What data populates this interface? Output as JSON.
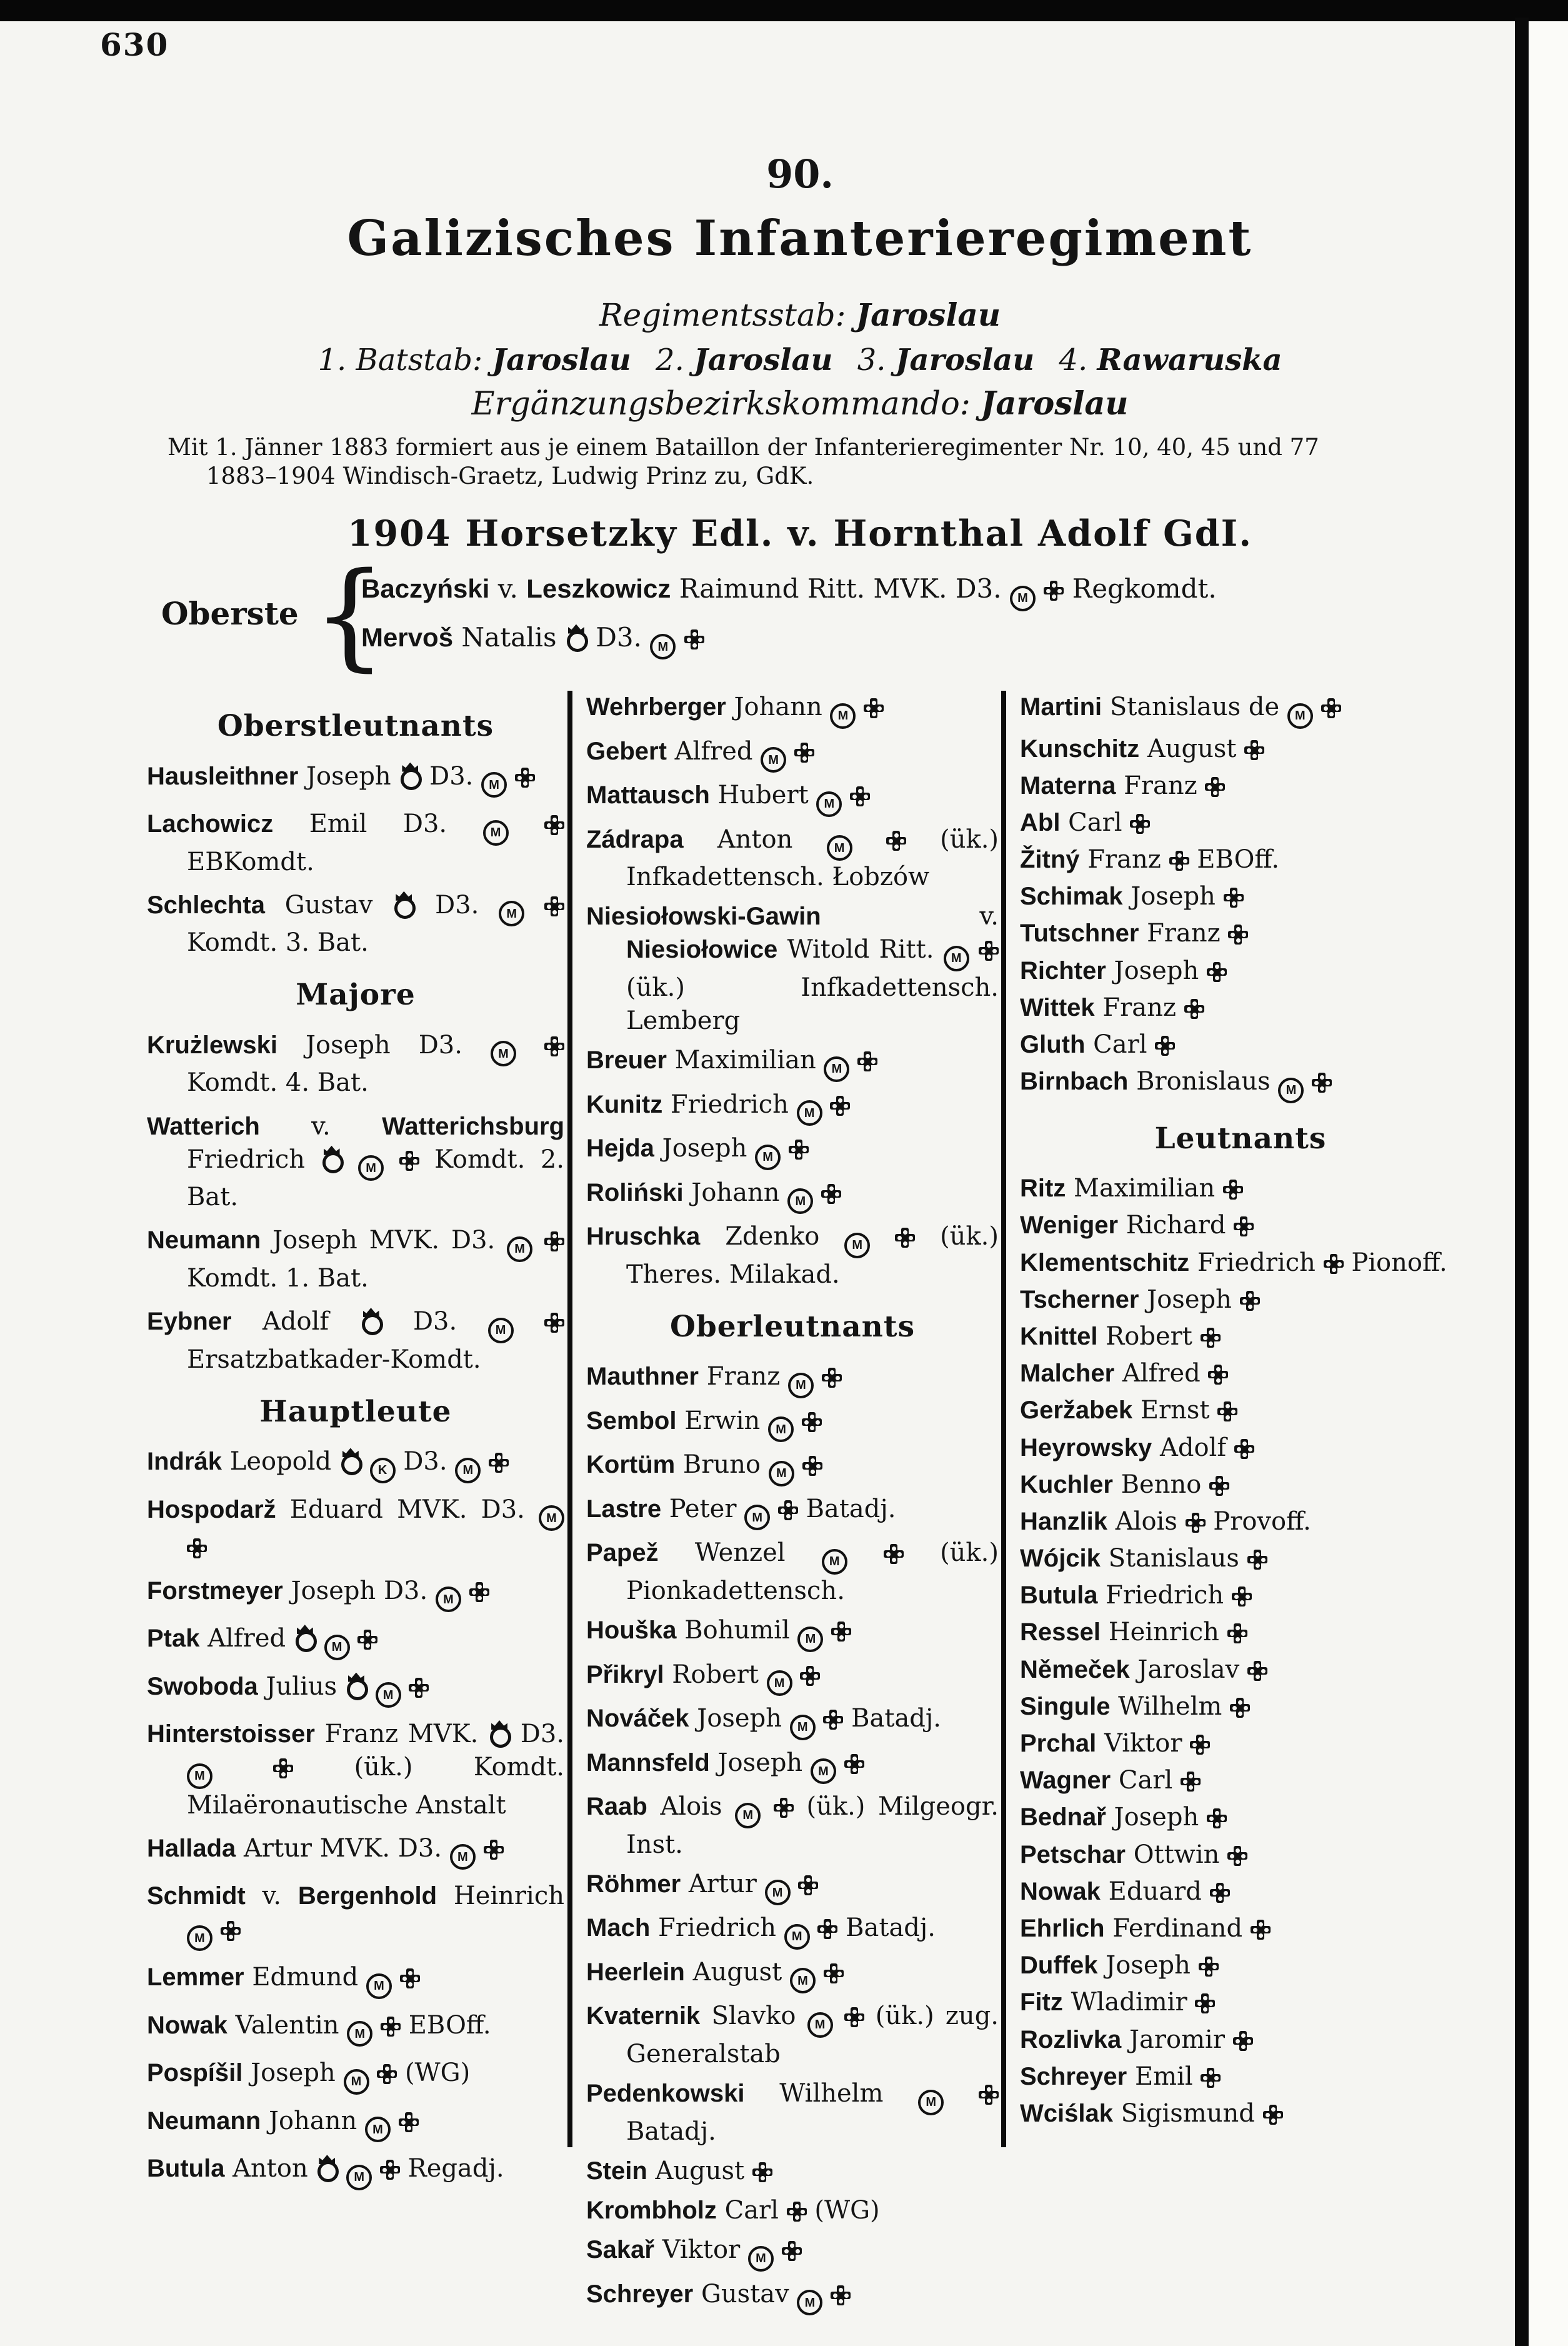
{
  "page_number": "630",
  "header": {
    "number": "90.",
    "title": "Galizisches Infanterieregiment",
    "staff": "Regimentsstab: **Jaroslau**",
    "battalions": "1. Batstab: **Jaroslau**  2. **Jaroslau**  3. **Jaroslau**  4. **Rawaruska**",
    "erg": "Ergänzungsbezirkskommando: **Jaroslau**",
    "formation_1": "Mit 1. Jänner 1883 formiert aus je einem Bataillon der Infanterieregimenter Nr. 10, 40, 45 und 77",
    "formation_2": "1883–1904 Windisch-Graetz, Ludwig  Prinz zu,  GdK.",
    "chief": "1904  Horsetzky Edl. v. Hornthal Adolf GdI."
  },
  "oberste": {
    "label": "Oberste",
    "entries": [
      "**Baczyński** v. **Leszkowicz** Raimund Ritt. MVK. D3. {M} {cross} Regkomdt.",
      "**Mervoš** Natalis {crown} D3. {M} {cross}"
    ]
  },
  "columns": [
    {
      "blocks": [
        {
          "type": "heading",
          "text": "Oberstleutnants"
        },
        {
          "type": "entry",
          "text": "**Hausleithner** Joseph {crown} D3. {M} {cross}"
        },
        {
          "type": "entry",
          "text": "**Lachowicz** Emil D3. {M} {cross} EBKomdt."
        },
        {
          "type": "entry",
          "text": "**Schlechta** Gustav {crown} D3. {M} {cross} Komdt. 3. Bat."
        },
        {
          "type": "heading",
          "text": "Majore"
        },
        {
          "type": "entry",
          "text": "**Krużlewski** Joseph D3. {M} {cross} Komdt. 4. Bat."
        },
        {
          "type": "entry",
          "text": "**Watterich** v. **Watterichsburg** Friedrich {crown} {M} {cross} Komdt. 2. Bat."
        },
        {
          "type": "entry",
          "text": "**Neumann** Joseph MVK. D3. {M} {cross} Komdt. 1. Bat."
        },
        {
          "type": "entry",
          "text": "**Eybner** Adolf {crown} D3. {M} {cross} Ersatzbatkader-Komdt."
        },
        {
          "type": "heading",
          "text": "Hauptleute"
        },
        {
          "type": "entry",
          "text": "**Indrák** Leopold {crown} {K} D3. {M} {cross}"
        },
        {
          "type": "entry",
          "text": "**Hospodarž** Eduard MVK. D3. {M} {cross}"
        },
        {
          "type": "entry",
          "text": "**Forstmeyer** Joseph D3. {M} {cross}"
        },
        {
          "type": "entry",
          "text": "**Ptak** Alfred {crown} {M} {cross}"
        },
        {
          "type": "entry",
          "text": "**Swoboda** Julius {crown} {M} {cross}"
        },
        {
          "type": "entry",
          "text": "**Hinterstoisser** Franz MVK. {crown} D3. {M} {cross} (ük.) Komdt. Milaëronautische Anstalt"
        },
        {
          "type": "entry",
          "text": "**Hallada** Artur MVK. D3. {M} {cross}"
        },
        {
          "type": "entry",
          "text": "**Schmidt** v. **Bergenhold** Heinrich {M} {cross}"
        },
        {
          "type": "entry",
          "text": "**Lemmer** Edmund {M} {cross}"
        },
        {
          "type": "entry",
          "text": "**Nowak** Valentin {M} {cross} EBOff."
        },
        {
          "type": "entry",
          "text": "**Pospíšil** Joseph {M} {cross} (WG)"
        },
        {
          "type": "entry",
          "text": "**Neumann** Johann {M} {cross}"
        },
        {
          "type": "entry",
          "text": "**Butula** Anton {crown} {M} {cross} Regadj."
        }
      ]
    },
    {
      "blocks": [
        {
          "type": "entry",
          "text": "**Wehrberger** Johann {M} {cross}"
        },
        {
          "type": "entry",
          "text": "**Gebert** Alfred {M} {cross}"
        },
        {
          "type": "entry",
          "text": "**Mattausch** Hubert {M} {cross}"
        },
        {
          "type": "entry",
          "text": "**Zádrapa** Anton {M} {cross} (ük.) Infkadettensch. Łobzów"
        },
        {
          "type": "entry",
          "text": "**Niesiołowski-Gawin** v. **Niesiołowice** Witold Ritt. {M} {cross} (ük.) Infkadettensch. Lemberg"
        },
        {
          "type": "entry",
          "text": "**Breuer** Maximilian {M} {cross}"
        },
        {
          "type": "entry",
          "text": "**Kunitz** Friedrich {M} {cross}"
        },
        {
          "type": "entry",
          "text": "**Hejda** Joseph {M} {cross}"
        },
        {
          "type": "entry",
          "text": "**Roliński** Johann {M} {cross}"
        },
        {
          "type": "entry",
          "text": "**Hruschka** Zdenko {M} {cross} (ük.) Theres. Milakad."
        },
        {
          "type": "heading",
          "text": "Oberleutnants"
        },
        {
          "type": "entry",
          "text": "**Mauthner** Franz {M} {cross}"
        },
        {
          "type": "entry",
          "text": "**Sembol** Erwin {M} {cross}"
        },
        {
          "type": "entry",
          "text": "**Kortüm** Bruno {M} {cross}"
        },
        {
          "type": "entry",
          "text": "**Lastre** Peter {M} {cross} Batadj."
        },
        {
          "type": "entry",
          "text": "**Papež** Wenzel {M} {cross} (ük.) Pionkadettensch."
        },
        {
          "type": "entry",
          "text": "**Houška** Bohumil {M} {cross}"
        },
        {
          "type": "entry",
          "text": "**Přikryl** Robert {M} {cross}"
        },
        {
          "type": "entry",
          "text": "**Nováček** Joseph {M} {cross} Batadj."
        },
        {
          "type": "entry",
          "text": "**Mannsfeld** Joseph {M} {cross}"
        },
        {
          "type": "entry",
          "text": "**Raab** Alois {M} {cross} (ük.) Milgeogr. Inst."
        },
        {
          "type": "entry",
          "text": "**Röhmer** Artur {M} {cross}"
        },
        {
          "type": "entry",
          "text": "**Mach** Friedrich {M} {cross} Batadj."
        },
        {
          "type": "entry",
          "text": "**Heerlein** August {M} {cross}"
        },
        {
          "type": "entry",
          "text": "**Kvaternik** Slavko {M} {cross} (ük.) zug. Generalstab"
        },
        {
          "type": "entry",
          "text": "**Pedenkowski** Wilhelm {M} {cross} Batadj."
        },
        {
          "type": "entry",
          "text": "**Stein** August {cross}"
        },
        {
          "type": "entry",
          "text": "**Krombholz** Carl {cross} (WG)"
        },
        {
          "type": "entry",
          "text": "**Sakař** Viktor {M} {cross}"
        },
        {
          "type": "entry",
          "text": "**Schreyer** Gustav {M} {cross}"
        }
      ]
    },
    {
      "blocks": [
        {
          "type": "entry",
          "text": "**Martini** Stanislaus de {M} {cross}"
        },
        {
          "type": "entry",
          "text": "**Kunschitz** August {cross}"
        },
        {
          "type": "entry",
          "text": "**Materna** Franz {cross}"
        },
        {
          "type": "entry",
          "text": "**Abl** Carl {cross}"
        },
        {
          "type": "entry",
          "text": "**Žitný** Franz {cross} EBOff."
        },
        {
          "type": "entry",
          "text": "**Schimak** Joseph {cross}"
        },
        {
          "type": "entry",
          "text": "**Tutschner** Franz {cross}"
        },
        {
          "type": "entry",
          "text": "**Richter** Joseph {cross}"
        },
        {
          "type": "entry",
          "text": "**Wittek** Franz {cross}"
        },
        {
          "type": "entry",
          "text": "**Gluth** Carl {cross}"
        },
        {
          "type": "entry",
          "text": "**Birnbach** Bronislaus {M} {cross}"
        },
        {
          "type": "heading",
          "text": "Leutnants"
        },
        {
          "type": "entry",
          "text": "**Ritz** Maximilian {cross}"
        },
        {
          "type": "entry",
          "text": "**Weniger** Richard {cross}"
        },
        {
          "type": "entry",
          "text": "**Klementschitz** Friedrich {cross} Pionoff."
        },
        {
          "type": "entry",
          "text": "**Tscherner** Joseph {cross}"
        },
        {
          "type": "entry",
          "text": "**Knittel** Robert {cross}"
        },
        {
          "type": "entry",
          "text": "**Malcher** Alfred {cross}"
        },
        {
          "type": "entry",
          "text": "**Geržabek** Ernst {cross}"
        },
        {
          "type": "entry",
          "text": "**Heyrowsky** Adolf {cross}"
        },
        {
          "type": "entry",
          "text": "**Kuchler** Benno {cross}"
        },
        {
          "type": "entry",
          "text": "**Hanzlik** Alois {cross} Provoff."
        },
        {
          "type": "entry",
          "text": "**Wójcik** Stanislaus {cross}"
        },
        {
          "type": "entry",
          "text": "**Butula** Friedrich {cross}"
        },
        {
          "type": "entry",
          "text": "**Ressel** Heinrich {cross}"
        },
        {
          "type": "entry",
          "text": "**Němeček** Jaroslav {cross}"
        },
        {
          "type": "entry",
          "text": "**Singule** Wilhelm {cross}"
        },
        {
          "type": "entry",
          "text": "**Prchal** Viktor {cross}"
        },
        {
          "type": "entry",
          "text": "**Wagner** Carl {cross}"
        },
        {
          "type": "entry",
          "text": "**Bednař** Joseph {cross}"
        },
        {
          "type": "entry",
          "text": "**Petschar** Ottwin {cross}"
        },
        {
          "type": "entry",
          "text": "**Nowak** Eduard {cross}"
        },
        {
          "type": "entry",
          "text": "**Ehrlich** Ferdinand {cross}"
        },
        {
          "type": "entry",
          "text": "**Duffek** Joseph {cross}"
        },
        {
          "type": "entry",
          "text": "**Fitz** Wladimir {cross}"
        },
        {
          "type": "entry",
          "text": "**Rozlivka** Jaromir {cross}"
        },
        {
          "type": "entry",
          "text": "**Schreyer** Emil {cross}"
        },
        {
          "type": "entry",
          "text": "**Wciślak** Sigismund {cross}"
        }
      ]
    }
  ],
  "symbols_legend": {
    "M": "circled-M-medal-icon",
    "K": "circled-K-icon",
    "cross": "military-merit-cross-icon",
    "crown": "crown-order-icon"
  },
  "brace": "{"
}
